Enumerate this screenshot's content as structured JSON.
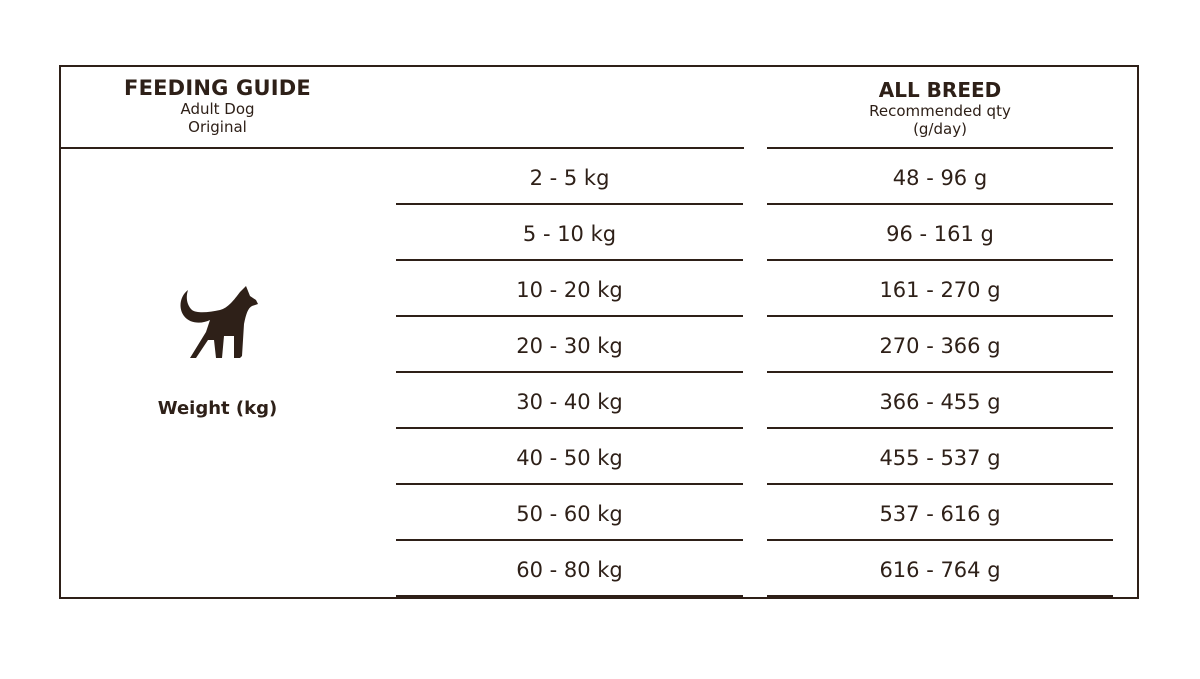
{
  "header": {
    "title": "FEEDING GUIDE",
    "subtitle_1": "Adult Dog",
    "subtitle_2": "Original",
    "column_title": "ALL BREED",
    "column_subtitle_1": "Recommended qty",
    "column_subtitle_2": "(g/day)"
  },
  "left": {
    "icon": "dog-icon",
    "label": "Weight (kg)"
  },
  "rows": [
    {
      "weight": "2 - 5 kg",
      "qty": "48 - 96 g"
    },
    {
      "weight": "5 - 10 kg",
      "qty": "96 - 161 g"
    },
    {
      "weight": "10 - 20 kg",
      "qty": "161 - 270 g"
    },
    {
      "weight": "20 - 30 kg",
      "qty": "270 - 366 g"
    },
    {
      "weight": "30 - 40 kg",
      "qty": "366 - 455 g"
    },
    {
      "weight": "40 - 50 kg",
      "qty": "455 - 537 g"
    },
    {
      "weight": "50 - 60 kg",
      "qty": "537 - 616 g"
    },
    {
      "weight": "60 - 80 kg",
      "qty": "616 - 764 g"
    }
  ],
  "colors": {
    "ink": "#2e2018",
    "background": "#ffffff"
  }
}
